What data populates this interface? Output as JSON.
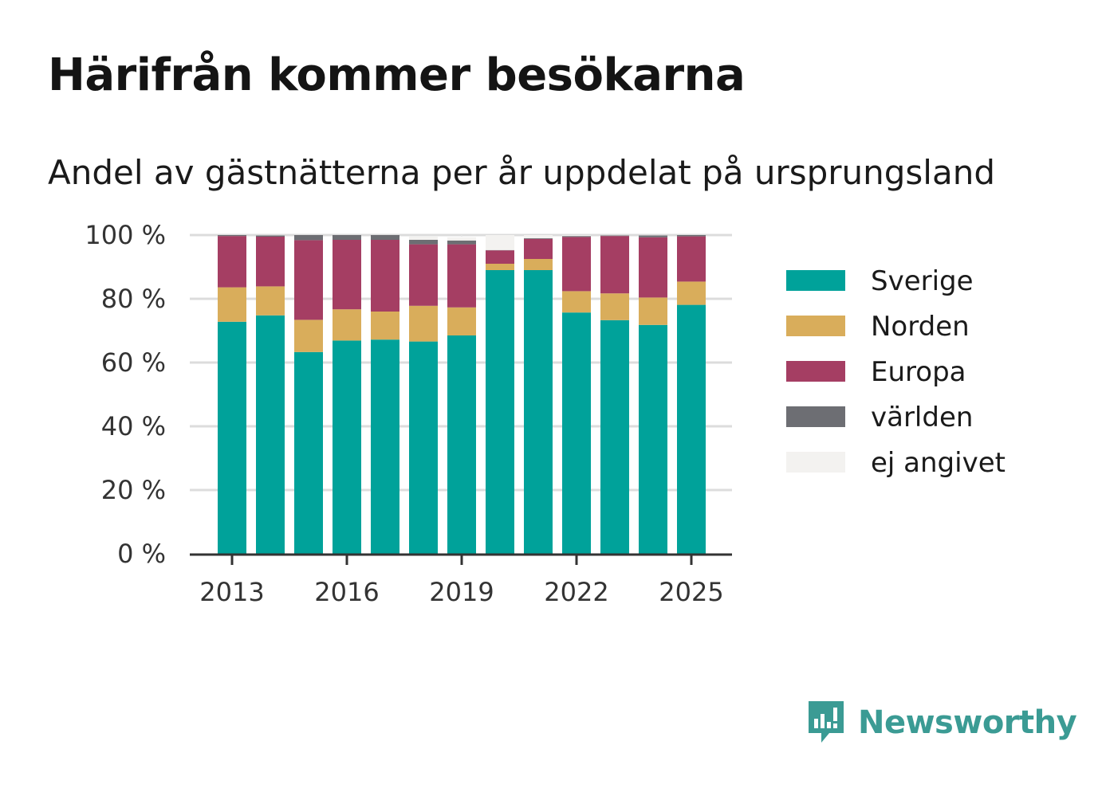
{
  "header": {
    "title": "Härifrån kommer besökarna",
    "subtitle": "Andel av gästnätterna per år uppdelat på ursprungsland"
  },
  "brand": {
    "name": "Newsworthy",
    "icon": "newsworthy-logo-icon"
  },
  "chart_data": {
    "type": "bar",
    "stacked": true,
    "title": "Härifrån kommer besökarna",
    "subtitle": "Andel av gästnätterna per år uppdelat på ursprungsland",
    "categories": [
      2013,
      2014,
      2015,
      2016,
      2017,
      2018,
      2019,
      2020,
      2021,
      2022,
      2023,
      2024,
      2025
    ],
    "x_ticks": [
      2013,
      2016,
      2019,
      2022,
      2025
    ],
    "y_ticks": [
      0,
      20,
      40,
      60,
      80,
      100
    ],
    "y_tick_suffix": " %",
    "ylim": [
      0,
      100
    ],
    "grid": true,
    "legend_position": "right",
    "series": [
      {
        "name": "Sverige",
        "color": "#00a29a",
        "values": [
          72.8,
          74.8,
          63.3,
          66.9,
          67.2,
          66.6,
          68.5,
          89.0,
          89.0,
          75.7,
          73.3,
          71.8,
          78.1
        ]
      },
      {
        "name": "Norden",
        "color": "#d9ad5b",
        "values": [
          10.8,
          9.1,
          10.1,
          9.8,
          8.8,
          11.2,
          8.8,
          2.0,
          3.5,
          6.7,
          8.4,
          8.6,
          7.3
        ]
      },
      {
        "name": "Europa",
        "color": "#a53e63",
        "values": [
          16.1,
          15.6,
          25.0,
          21.8,
          22.5,
          19.3,
          19.8,
          4.2,
          6.3,
          17.0,
          18.0,
          18.9,
          14.2
        ]
      },
      {
        "name": "världen",
        "color": "#6d6e73",
        "values": [
          0.3,
          0.4,
          1.6,
          1.5,
          1.5,
          1.4,
          1.2,
          0.1,
          0.2,
          0.3,
          0.2,
          0.6,
          0.4
        ]
      },
      {
        "name": "ej angivet",
        "color": "#f3f2f0",
        "values": [
          0.0,
          0.1,
          0.0,
          0.0,
          0.0,
          1.0,
          1.0,
          4.7,
          1.0,
          0.3,
          0.1,
          0.1,
          0.0
        ]
      }
    ]
  }
}
